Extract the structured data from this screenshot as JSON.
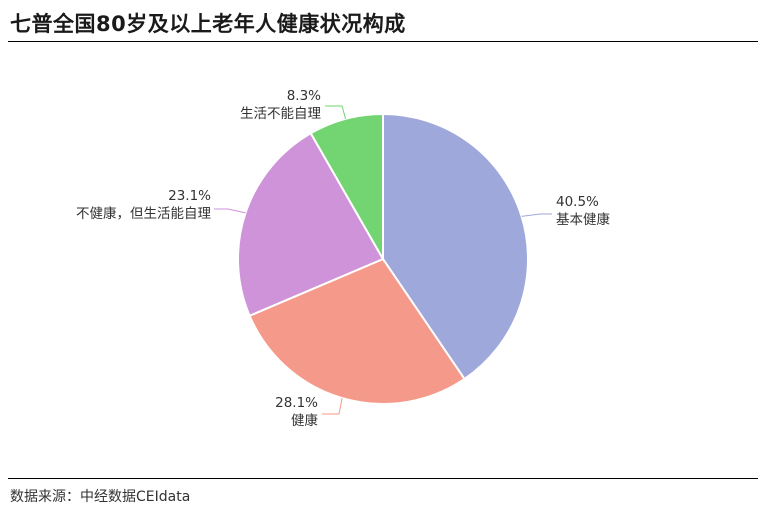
{
  "title": "七普全国80岁及以上老年人健康状况构成",
  "source": "数据来源：中经数据CEIdata",
  "chart_data": {
    "type": "pie",
    "title": "七普全国80岁及以上老年人健康状况构成",
    "slices": [
      {
        "label": "基本健康",
        "value": 40.5,
        "display": "40.5%",
        "color": "#9fa8da"
      },
      {
        "label": "健康",
        "value": 28.1,
        "display": "28.1%",
        "color": "#f59a8a"
      },
      {
        "label": "不健康，但生活能自理",
        "value": 23.1,
        "display": "23.1%",
        "color": "#ce93d8"
      },
      {
        "label": "生活不能自理",
        "value": 8.3,
        "display": "8.3%",
        "color": "#72d572"
      }
    ],
    "start_angle": "12 o'clock",
    "direction": "clockwise",
    "legend": "none"
  }
}
